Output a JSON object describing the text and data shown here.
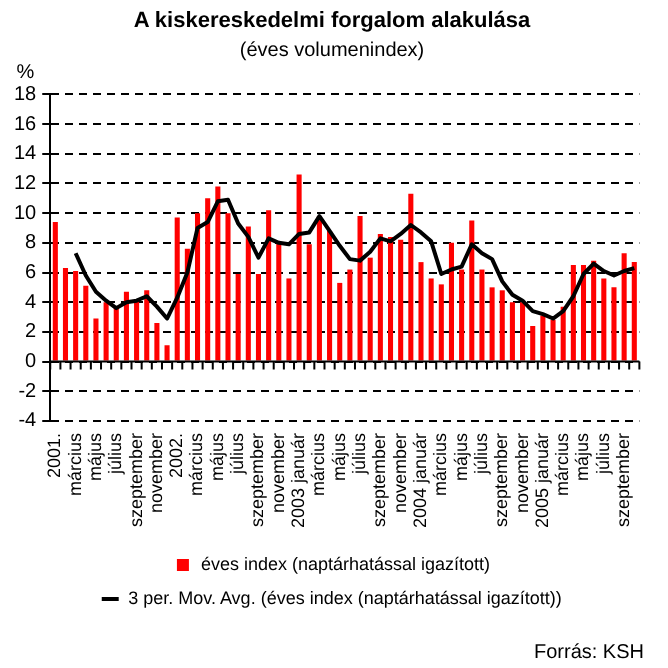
{
  "chart_data": {
    "type": "bar",
    "title": "A kiskereskedelmi forgalom alakulása",
    "subtitle": "(éves volumenindex)",
    "ylabel": "%",
    "annotations": [
      "Forrás: KSH"
    ],
    "categories": [
      "2001.",
      null,
      "március",
      null,
      "május",
      null,
      "július",
      null,
      "szeptember",
      null,
      "november",
      null,
      "2002.",
      null,
      "március",
      null,
      "május",
      null,
      "július",
      null,
      "szeptember",
      null,
      "november",
      null,
      "2003 január",
      null,
      "március",
      null,
      "május",
      null,
      "július",
      null,
      "szeptember",
      null,
      "november",
      null,
      "2004 január",
      null,
      "március",
      null,
      "május",
      null,
      "július",
      null,
      "szeptember",
      null,
      "november",
      null,
      "2005 január",
      null,
      "március",
      null,
      "május",
      null,
      "július",
      null,
      "szeptember",
      null
    ],
    "series": [
      {
        "name": "éves index (naptárhatással igazított)",
        "color": "#ff0000",
        "values": [
          9.4,
          6.3,
          6.1,
          5.1,
          2.9,
          4.0,
          3.6,
          4.7,
          4.1,
          4.8,
          2.6,
          1.1,
          9.7,
          7.6,
          10.0,
          11.0,
          11.8,
          10.0,
          5.9,
          9.1,
          5.9,
          10.2,
          8.0,
          5.6,
          12.6,
          7.9,
          9.8,
          8.8,
          5.3,
          6.2,
          9.8,
          7.0,
          8.6,
          8.4,
          8.2,
          11.3,
          6.7,
          5.6,
          5.2,
          8.0,
          6.2,
          9.5,
          6.2,
          5.0,
          4.8,
          4.0,
          4.0,
          2.4,
          3.1,
          2.8,
          3.7,
          6.5,
          6.5,
          6.8,
          5.6,
          5.0,
          7.3,
          6.7
        ]
      },
      {
        "name": "3 per. Mov. Avg. (éves index (naptárhatással igazított))",
        "type": "line",
        "color": "#000000",
        "values": [
          null,
          null,
          7.3,
          5.8,
          4.7,
          4.1,
          3.6,
          4.0,
          4.1,
          4.4,
          3.7,
          2.9,
          4.3,
          6.0,
          9.0,
          9.4,
          10.8,
          10.9,
          9.3,
          8.4,
          7.0,
          8.3,
          8.0,
          7.9,
          8.6,
          8.7,
          9.8,
          8.8,
          7.8,
          6.9,
          6.8,
          7.4,
          8.3,
          8.1,
          8.6,
          9.2,
          8.7,
          8.1,
          5.9,
          6.2,
          6.4,
          7.9,
          7.3,
          6.9,
          5.4,
          4.5,
          4.1,
          3.4,
          3.2,
          2.9,
          3.4,
          4.4,
          5.9,
          6.6,
          6.1,
          5.8,
          6.1,
          6.3
        ]
      }
    ],
    "marker": "none",
    "ylim": [
      -4,
      18
    ],
    "yticks": [
      -4,
      -2,
      0,
      2,
      4,
      6,
      8,
      10,
      12,
      14,
      16,
      18
    ],
    "grid": "y",
    "legend": "bottom"
  }
}
